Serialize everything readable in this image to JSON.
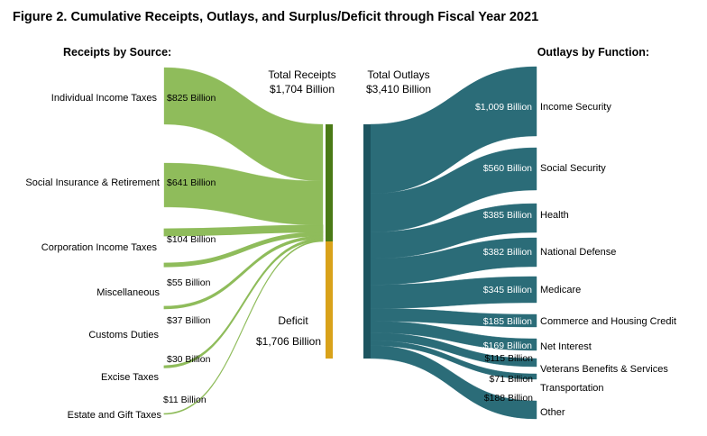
{
  "chart_data": {
    "type": "sankey",
    "title": "Figure 2. Cumulative Receipts, Outlays, and Surplus/Deficit through Fiscal Year 2021",
    "receipts_heading": "Receipts by Source:",
    "outlays_heading": "Outlays by Function:",
    "total_receipts": {
      "label": "Total Receipts",
      "value_label": "$1,704 Billion",
      "value": 1704
    },
    "total_outlays": {
      "label": "Total Outlays",
      "value_label": "$3,410 Billion",
      "value": 3410
    },
    "deficit": {
      "label": "Deficit",
      "value_label": "$1,706 Billion",
      "value": 1706
    },
    "receipts": [
      {
        "name": "Individual Income Taxes",
        "value": 825,
        "value_label": "$825 Billion"
      },
      {
        "name": "Social Insurance & Retirement",
        "value": 641,
        "value_label": "$641 Billion"
      },
      {
        "name": "Corporation Income Taxes",
        "value": 104,
        "value_label": "$104 Billion"
      },
      {
        "name": "Miscellaneous",
        "value": 55,
        "value_label": "$55 Billion"
      },
      {
        "name": "Customs Duties",
        "value": 37,
        "value_label": "$37 Billion"
      },
      {
        "name": "Excise Taxes",
        "value": 30,
        "value_label": "$30 Billion"
      },
      {
        "name": "Estate and Gift Taxes",
        "value": 11,
        "value_label": "$11 Billion"
      }
    ],
    "outlays": [
      {
        "name": "Income Security",
        "value": 1009,
        "value_label": "$1,009 Billion"
      },
      {
        "name": "Social Security",
        "value": 560,
        "value_label": "$560 Billion"
      },
      {
        "name": "Health",
        "value": 385,
        "value_label": "$385 Billion"
      },
      {
        "name": "National Defense",
        "value": 382,
        "value_label": "$382 Billion"
      },
      {
        "name": "Medicare",
        "value": 345,
        "value_label": "$345 Billion"
      },
      {
        "name": "Commerce and Housing Credit",
        "value": 185,
        "value_label": "$185 Billion"
      },
      {
        "name": "Net Interest",
        "value": 169,
        "value_label": "$169 Billion"
      },
      {
        "name": "Veterans Benefits & Services",
        "value": 115,
        "value_label": "$115 Billion"
      },
      {
        "name": "Transportation",
        "value": 71,
        "value_label": "$71 Billion"
      },
      {
        "name": "Other",
        "value": 188,
        "value_label": "$188 Billion"
      }
    ],
    "colors": {
      "receipts_flow": "#8fbc5b",
      "receipts_bar": "#4a7a16",
      "deficit_bar": "#d9a21a",
      "outlays_flow": "#2b6c78",
      "outlays_bar": "#1d5560"
    }
  }
}
